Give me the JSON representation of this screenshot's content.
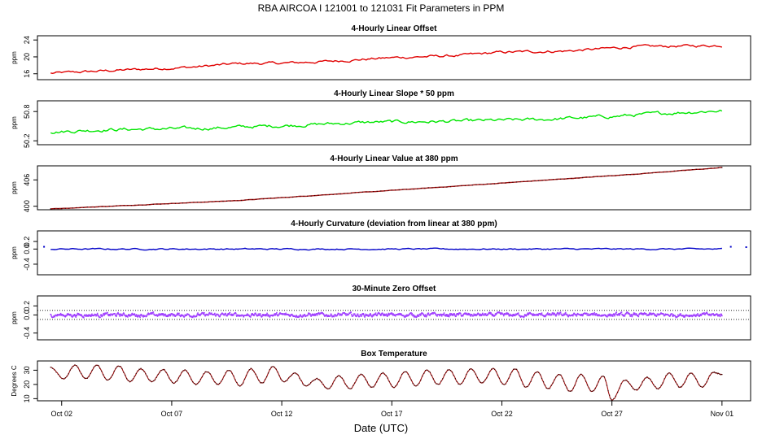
{
  "figure_title": "RBA   AIRCOA I   121001 to 121031   Fit Parameters in PPM",
  "x_axis": {
    "label": "Date (UTC)",
    "ticks": [
      {
        "day": 2,
        "label": "Oct 02"
      },
      {
        "day": 7,
        "label": "Oct 07"
      },
      {
        "day": 12,
        "label": "Oct 12"
      },
      {
        "day": 17,
        "label": "Oct 17"
      },
      {
        "day": 22,
        "label": "Oct 22"
      },
      {
        "day": 27,
        "label": "Oct 27"
      },
      {
        "day": 32,
        "label": "Nov 01"
      }
    ],
    "range": [
      0.9,
      33.3
    ]
  },
  "colors": {
    "offset": "#e00000",
    "slope": "#00e600",
    "value": "#a01010",
    "curvature": "#0000c8",
    "zero": "#a040ff",
    "temp": "#a01010"
  },
  "chart_data": [
    {
      "id": "offset",
      "type": "line",
      "title": "4-Hourly Linear Offset",
      "ylabel": "ppm",
      "ylim": [
        14.6,
        25.0
      ],
      "yticks": [
        {
          "v": 16,
          "label": "16"
        },
        {
          "v": 20,
          "label": "20"
        },
        {
          "v": 24,
          "label": "24"
        }
      ],
      "keypoints": [
        [
          1.5,
          16.1
        ],
        [
          4,
          16.7
        ],
        [
          8,
          17.6
        ],
        [
          10,
          18.4
        ],
        [
          12,
          18.5
        ],
        [
          14,
          18.9
        ],
        [
          17,
          19.8
        ],
        [
          20,
          20.3
        ],
        [
          22,
          21.1
        ],
        [
          25,
          21.4
        ],
        [
          28,
          22.4
        ],
        [
          32,
          22.7
        ]
      ],
      "noise": 0.45,
      "style": "line"
    },
    {
      "id": "slope",
      "type": "line",
      "title": "4-Hourly Linear Slope * 50 ppm",
      "ylabel": "ppm",
      "ylim": [
        50.12,
        51.02
      ],
      "yticks": [
        {
          "v": 50.2,
          "label": "50.2"
        },
        {
          "v": 50.8,
          "label": "50.8"
        }
      ],
      "keypoints": [
        [
          1.5,
          50.38
        ],
        [
          4,
          50.43
        ],
        [
          8,
          50.45
        ],
        [
          12,
          50.51
        ],
        [
          16,
          50.58
        ],
        [
          20,
          50.6
        ],
        [
          24,
          50.64
        ],
        [
          27,
          50.7
        ],
        [
          30,
          50.78
        ],
        [
          32,
          50.82
        ]
      ],
      "noise": 0.05,
      "style": "line"
    },
    {
      "id": "value",
      "type": "line",
      "title": "4-Hourly Linear Value at 380 ppm",
      "ylabel": "ppm",
      "ylim": [
        399.2,
        409.2
      ],
      "yticks": [
        {
          "v": 400,
          "label": "400"
        },
        {
          "v": 406,
          "label": "406"
        }
      ],
      "keypoints": [
        [
          1.5,
          399.4
        ],
        [
          10,
          401.3
        ],
        [
          20,
          404.6
        ],
        [
          28,
          407.3
        ],
        [
          32,
          408.8
        ]
      ],
      "noise": 0.06,
      "style": "line"
    },
    {
      "id": "curvature",
      "type": "line",
      "title": "4-Hourly Curvature (deviation from linear at 380 ppm)",
      "ylabel": "ppm",
      "ylim": [
        -0.68,
        0.48
      ],
      "yticks": [
        {
          "v": -0.4,
          "label": "-0.4"
        },
        {
          "v": 0.0,
          "label": "0.0"
        },
        {
          "v": 0.2,
          "label": "0.2"
        }
      ],
      "keypoints": [
        [
          1.5,
          0.0
        ],
        [
          32,
          0.0
        ]
      ],
      "noise": 0.025,
      "style": "line",
      "outliers": [
        [
          1.2,
          0.06
        ],
        [
          32.4,
          0.06
        ],
        [
          33.1,
          0.05
        ]
      ]
    },
    {
      "id": "zero",
      "type": "scatter",
      "title": "30-Minute Zero Offset",
      "ylabel": "ppm",
      "ylim": [
        -0.55,
        0.42
      ],
      "yticks": [
        {
          "v": -0.4,
          "label": "-0.4"
        },
        {
          "v": 0.0,
          "label": "0.0"
        },
        {
          "v": 0.2,
          "label": "0.2"
        }
      ],
      "hlines": [
        0.1,
        -0.1
      ],
      "keypoints": [
        [
          1.5,
          0.0
        ],
        [
          32,
          0.0
        ]
      ],
      "noise": 0.06,
      "style": "dots"
    },
    {
      "id": "temp",
      "type": "line",
      "title": "Box Temperature",
      "ylabel": "Degrees C",
      "ylim": [
        8.5,
        36.5
      ],
      "yticks": [
        {
          "v": 10,
          "label": "10"
        },
        {
          "v": 20,
          "label": "20"
        },
        {
          "v": 30,
          "label": "30"
        }
      ],
      "peaks": [
        [
          1.5,
          32
        ],
        [
          2.6,
          33.5
        ],
        [
          3.6,
          33.5
        ],
        [
          4.6,
          33
        ],
        [
          5.6,
          31
        ],
        [
          6.6,
          30.5
        ],
        [
          7.6,
          30
        ],
        [
          8.6,
          29
        ],
        [
          9.6,
          30
        ],
        [
          10.6,
          31
        ],
        [
          11.6,
          32.5
        ],
        [
          12.6,
          28
        ],
        [
          13.6,
          24
        ],
        [
          14.6,
          26
        ],
        [
          15.6,
          27
        ],
        [
          16.6,
          28
        ],
        [
          17.6,
          29
        ],
        [
          18.6,
          30
        ],
        [
          19.6,
          30.5
        ],
        [
          20.6,
          31
        ],
        [
          21.6,
          31
        ],
        [
          22.6,
          31
        ],
        [
          23.6,
          29
        ],
        [
          24.6,
          27
        ],
        [
          25.6,
          27
        ],
        [
          26.6,
          26
        ],
        [
          27.6,
          23
        ],
        [
          28.6,
          25
        ],
        [
          29.6,
          28
        ],
        [
          30.6,
          28
        ],
        [
          31.6,
          28.5
        ]
      ],
      "troughs": [
        [
          2.1,
          24
        ],
        [
          3.1,
          24
        ],
        [
          4.1,
          23
        ],
        [
          5.1,
          22
        ],
        [
          6.1,
          22
        ],
        [
          7.1,
          21
        ],
        [
          8.1,
          20
        ],
        [
          9.1,
          20
        ],
        [
          10.1,
          19
        ],
        [
          11.1,
          21
        ],
        [
          12.1,
          22
        ],
        [
          13.1,
          19
        ],
        [
          14.1,
          17
        ],
        [
          15.1,
          17
        ],
        [
          16.1,
          18
        ],
        [
          17.1,
          18
        ],
        [
          18.1,
          19
        ],
        [
          19.1,
          20
        ],
        [
          20.1,
          20
        ],
        [
          21.1,
          21
        ],
        [
          22.1,
          20
        ],
        [
          23.1,
          18
        ],
        [
          24.1,
          17
        ],
        [
          25.1,
          15
        ],
        [
          26.1,
          15
        ],
        [
          27.0,
          9
        ],
        [
          28.1,
          16
        ],
        [
          29.1,
          17
        ],
        [
          30.1,
          18
        ],
        [
          31.1,
          18
        ],
        [
          32.0,
          27
        ]
      ],
      "style": "line"
    }
  ]
}
